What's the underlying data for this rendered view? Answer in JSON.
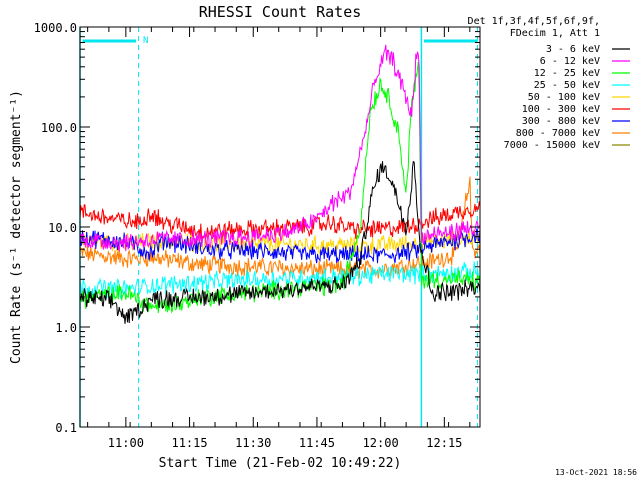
{
  "chart_data": {
    "type": "line",
    "title": "RHESSI Count Rates",
    "xlabel": "Start Time (21-Feb-02 10:49:22)",
    "ylabel": "Count Rate (s⁻¹ detector segment⁻¹)",
    "y_scale": "log",
    "ylim": [
      0.1,
      1000
    ],
    "xlim_minutes": [
      10.82,
      12.39
    ],
    "x_ticks": [
      {
        "label": "11:00",
        "t": 11.0
      },
      {
        "label": "11:15",
        "t": 11.25
      },
      {
        "label": "11:30",
        "t": 11.5
      },
      {
        "label": "11:45",
        "t": 11.75
      },
      {
        "label": "12:00",
        "t": 12.0
      },
      {
        "label": "12:15",
        "t": 12.25
      }
    ],
    "y_ticks": [
      {
        "label": "0.1",
        "v": 0.1
      },
      {
        "label": "1.0",
        "v": 1
      },
      {
        "label": "10.0",
        "v": 10
      },
      {
        "label": "100.0",
        "v": 100
      },
      {
        "label": "1000.0",
        "v": 1000
      }
    ],
    "legend_header": [
      "Det 1f,3f,4f,5f,6f,9f,",
      "FDecim 1, Att 1"
    ],
    "legend_position": "right",
    "annotations": {
      "night_marker": "N",
      "timestamp": "13-Oct-2021 18:56"
    },
    "markers": {
      "color": "#00e5ee",
      "solid_lines": [
        10.82,
        12.16
      ],
      "dashed_lines": [
        11.05,
        12.38
      ],
      "bars": [
        [
          10.83,
          11.04
        ],
        [
          12.17,
          12.38
        ]
      ]
    },
    "series": [
      {
        "name": "3 - 6 keV",
        "color": "#000000",
        "points": [
          [
            10.82,
            2.0
          ],
          [
            10.95,
            1.8
          ],
          [
            11.0,
            1.2
          ],
          [
            11.1,
            1.9
          ],
          [
            11.3,
            2.0
          ],
          [
            11.5,
            2.2
          ],
          [
            11.7,
            2.5
          ],
          [
            11.85,
            2.6
          ],
          [
            11.92,
            4.5
          ],
          [
            11.96,
            18
          ],
          [
            12.0,
            40
          ],
          [
            12.03,
            35
          ],
          [
            12.07,
            18
          ],
          [
            12.1,
            10
          ],
          [
            12.12,
            25
          ],
          [
            12.13,
            55
          ],
          [
            12.15,
            8
          ],
          [
            12.2,
            2.2
          ],
          [
            12.3,
            2.3
          ],
          [
            12.39,
            2.5
          ]
        ]
      },
      {
        "name": "6 - 12 keV",
        "color": "#ff00ff",
        "points": [
          [
            10.82,
            7.5
          ],
          [
            11.0,
            7.0
          ],
          [
            11.1,
            7.5
          ],
          [
            11.3,
            7.5
          ],
          [
            11.5,
            8.0
          ],
          [
            11.65,
            9.0
          ],
          [
            11.75,
            12
          ],
          [
            11.82,
            18
          ],
          [
            11.88,
            22
          ],
          [
            11.93,
            70
          ],
          [
            11.98,
            300
          ],
          [
            12.02,
            550
          ],
          [
            12.05,
            450
          ],
          [
            12.1,
            200
          ],
          [
            12.12,
            130
          ],
          [
            12.14,
            500
          ],
          [
            12.15,
            600
          ],
          [
            12.16,
            8
          ],
          [
            12.3,
            9
          ],
          [
            12.39,
            10
          ]
        ]
      },
      {
        "name": "12 - 25 keV",
        "color": "#00ff00",
        "points": [
          [
            10.82,
            1.9
          ],
          [
            11.0,
            2.2
          ],
          [
            11.1,
            1.6
          ],
          [
            11.2,
            1.7
          ],
          [
            11.3,
            2.0
          ],
          [
            11.5,
            2.2
          ],
          [
            11.7,
            2.5
          ],
          [
            11.85,
            2.6
          ],
          [
            11.92,
            10
          ],
          [
            11.96,
            150
          ],
          [
            12.0,
            270
          ],
          [
            12.03,
            200
          ],
          [
            12.07,
            90
          ],
          [
            12.1,
            20
          ],
          [
            12.12,
            150
          ],
          [
            12.15,
            450
          ],
          [
            12.16,
            3
          ],
          [
            12.3,
            3.0
          ],
          [
            12.39,
            2.8
          ]
        ]
      },
      {
        "name": "25 - 50 keV",
        "color": "#00ffff",
        "points": [
          [
            10.82,
            2.5
          ],
          [
            11.0,
            2.4
          ],
          [
            11.1,
            2.6
          ],
          [
            11.3,
            2.8
          ],
          [
            11.5,
            3.0
          ],
          [
            11.7,
            3.1
          ],
          [
            11.9,
            3.2
          ],
          [
            12.0,
            3.4
          ],
          [
            12.1,
            3.4
          ],
          [
            12.2,
            3.4
          ],
          [
            12.39,
            3.6
          ]
        ]
      },
      {
        "name": "50 - 100 keV",
        "color": "#ffd700",
        "points": [
          [
            10.82,
            7.5
          ],
          [
            11.0,
            6.8
          ],
          [
            11.1,
            7.2
          ],
          [
            11.3,
            7.0
          ],
          [
            11.5,
            6.8
          ],
          [
            11.7,
            6.6
          ],
          [
            11.9,
            6.5
          ],
          [
            12.0,
            6.6
          ],
          [
            12.2,
            7.0
          ],
          [
            12.39,
            8.0
          ]
        ]
      },
      {
        "name": "100 - 300 keV",
        "color": "#ff0000",
        "points": [
          [
            10.82,
            14
          ],
          [
            10.95,
            12
          ],
          [
            11.05,
            11
          ],
          [
            11.1,
            14
          ],
          [
            11.15,
            11
          ],
          [
            11.3,
            9
          ],
          [
            11.5,
            9.5
          ],
          [
            11.7,
            10
          ],
          [
            11.8,
            11
          ],
          [
            11.9,
            9.5
          ],
          [
            12.0,
            9.5
          ],
          [
            12.1,
            10
          ],
          [
            12.2,
            12
          ],
          [
            12.3,
            14
          ],
          [
            12.39,
            16
          ]
        ]
      },
      {
        "name": "300 - 800 keV",
        "color": "#0000ff",
        "points": [
          [
            10.82,
            8
          ],
          [
            11.0,
            7.0
          ],
          [
            11.1,
            5.5
          ],
          [
            11.15,
            7.5
          ],
          [
            11.3,
            6.0
          ],
          [
            11.5,
            5.8
          ],
          [
            11.7,
            5.3
          ],
          [
            11.9,
            5.2
          ],
          [
            12.0,
            5.2
          ],
          [
            12.1,
            5.5
          ],
          [
            12.2,
            6.5
          ],
          [
            12.3,
            7.5
          ],
          [
            12.39,
            8.5
          ]
        ]
      },
      {
        "name": "800 - 7000 keV",
        "color": "#ff7f00",
        "points": [
          [
            10.82,
            5.5
          ],
          [
            11.0,
            4.8
          ],
          [
            11.1,
            5.0
          ],
          [
            11.3,
            4.2
          ],
          [
            11.5,
            4.0
          ],
          [
            11.7,
            3.8
          ],
          [
            11.9,
            3.7
          ],
          [
            12.0,
            3.8
          ],
          [
            12.2,
            4.5
          ],
          [
            12.3,
            5.5
          ],
          [
            12.35,
            30
          ],
          [
            12.36,
            6
          ],
          [
            12.39,
            6
          ]
        ]
      },
      {
        "name": "7000 - 15000 keV",
        "color": "#8b8b00",
        "points": []
      }
    ]
  }
}
